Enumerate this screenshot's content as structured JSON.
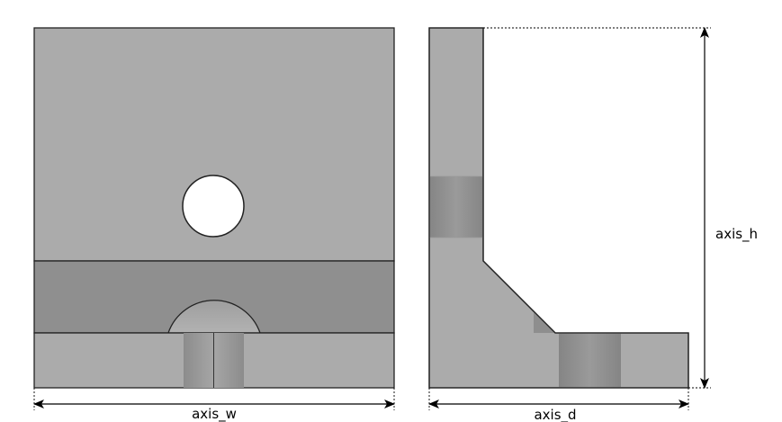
{
  "labels": {
    "width": "axis_w",
    "depth": "axis_d",
    "height": "axis_h"
  },
  "colors": {
    "face_light": "#ababab",
    "face_mid": "#8f8f8f",
    "face_dark": "#8a8a8a",
    "outline": "#222222",
    "hole": "#ffffff"
  }
}
